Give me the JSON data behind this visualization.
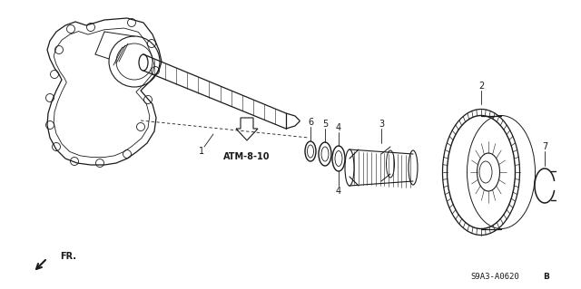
{
  "bg_color": "#ffffff",
  "line_color": "#1a1a1a",
  "fig_width": 6.4,
  "fig_height": 3.19,
  "dpi": 100,
  "part_number_text": "S9A3-A0620",
  "atm_label": "ATM-8-10"
}
